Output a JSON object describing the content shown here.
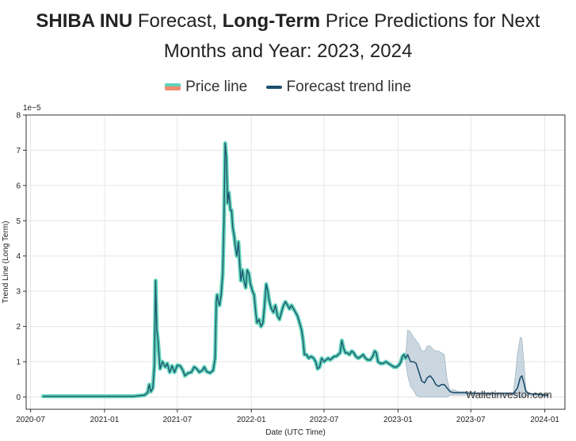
{
  "title": {
    "part1_bold": "SHIBA INU",
    "part2": " Forecast, ",
    "part3_bold": "Long-Term",
    "part4": " Price Predictions for Next",
    "line2": "Months and Year: 2023, 2024"
  },
  "legend": {
    "price_label": "Price line",
    "forecast_label": "Forecast trend line"
  },
  "colors": {
    "price_line": "#5fd3b8",
    "price_line_alt": "#f28b6e",
    "forecast_line": "#1d4f6e",
    "confidence_band": "#b9cad6",
    "grid": "#e6e6e6"
  },
  "watermark": "Walletinvestor.com",
  "chart_data": {
    "type": "line",
    "xlabel": "Date (UTC Time)",
    "ylabel": "Trend Line (Long Term)",
    "y_scale_label": "1e−5",
    "xlim": [
      "2020-06-20",
      "2024-02-20"
    ],
    "ylim": [
      -0.35,
      8
    ],
    "x_ticks": [
      "2020-07",
      "2021-01",
      "2021-07",
      "2022-01",
      "2022-07",
      "2023-01",
      "2023-07",
      "2024-01"
    ],
    "y_ticks": [
      0,
      1,
      2,
      3,
      4,
      5,
      6,
      7,
      8
    ],
    "grid": true,
    "legend_position": "top",
    "series": [
      {
        "name": "Price line",
        "points": [
          [
            "2020-08-01",
            0.02
          ],
          [
            "2020-09-15",
            0.02
          ],
          [
            "2020-11-01",
            0.02
          ],
          [
            "2020-12-15",
            0.02
          ],
          [
            "2021-01-31",
            0.02
          ],
          [
            "2021-03-15",
            0.02
          ],
          [
            "2021-04-10",
            0.05
          ],
          [
            "2021-04-18",
            0.12
          ],
          [
            "2021-04-22",
            0.35
          ],
          [
            "2021-04-26",
            0.15
          ],
          [
            "2021-05-01",
            0.25
          ],
          [
            "2021-05-05",
            0.9
          ],
          [
            "2021-05-08",
            3.3
          ],
          [
            "2021-05-11",
            1.9
          ],
          [
            "2021-05-14",
            1.6
          ],
          [
            "2021-05-19",
            0.8
          ],
          [
            "2021-05-25",
            1.0
          ],
          [
            "2021-06-01",
            0.85
          ],
          [
            "2021-06-06",
            0.95
          ],
          [
            "2021-06-12",
            0.7
          ],
          [
            "2021-06-18",
            0.88
          ],
          [
            "2021-06-24",
            0.7
          ],
          [
            "2021-07-01",
            0.9
          ],
          [
            "2021-07-08",
            0.88
          ],
          [
            "2021-07-15",
            0.75
          ],
          [
            "2021-07-20",
            0.6
          ],
          [
            "2021-07-28",
            0.68
          ],
          [
            "2021-08-05",
            0.7
          ],
          [
            "2021-08-12",
            0.85
          ],
          [
            "2021-08-18",
            0.8
          ],
          [
            "2021-08-25",
            0.7
          ],
          [
            "2021-09-01",
            0.75
          ],
          [
            "2021-09-06",
            0.85
          ],
          [
            "2021-09-12",
            0.72
          ],
          [
            "2021-09-20",
            0.68
          ],
          [
            "2021-09-28",
            0.75
          ],
          [
            "2021-10-03",
            1.1
          ],
          [
            "2021-10-06",
            2.7
          ],
          [
            "2021-10-08",
            2.9
          ],
          [
            "2021-10-11",
            2.7
          ],
          [
            "2021-10-14",
            2.6
          ],
          [
            "2021-10-18",
            2.9
          ],
          [
            "2021-10-22",
            3.5
          ],
          [
            "2021-10-25",
            5.0
          ],
          [
            "2021-10-28",
            7.2
          ],
          [
            "2021-10-31",
            6.8
          ],
          [
            "2021-11-03",
            5.5
          ],
          [
            "2021-11-06",
            5.8
          ],
          [
            "2021-11-10",
            5.3
          ],
          [
            "2021-11-13",
            5.3
          ],
          [
            "2021-11-16",
            4.8
          ],
          [
            "2021-11-19",
            4.6
          ],
          [
            "2021-11-22",
            4.3
          ],
          [
            "2021-11-26",
            4.0
          ],
          [
            "2021-11-30",
            4.4
          ],
          [
            "2021-12-03",
            3.8
          ],
          [
            "2021-12-06",
            3.3
          ],
          [
            "2021-12-10",
            3.6
          ],
          [
            "2021-12-14",
            3.3
          ],
          [
            "2021-12-18",
            3.1
          ],
          [
            "2021-12-22",
            3.6
          ],
          [
            "2021-12-26",
            3.5
          ],
          [
            "2021-12-30",
            3.2
          ],
          [
            "2022-01-04",
            3.0
          ],
          [
            "2022-01-08",
            2.9
          ],
          [
            "2022-01-12",
            2.4
          ],
          [
            "2022-01-15",
            2.1
          ],
          [
            "2022-01-20",
            2.2
          ],
          [
            "2022-01-25",
            2.0
          ],
          [
            "2022-01-30",
            2.1
          ],
          [
            "2022-02-03",
            2.6
          ],
          [
            "2022-02-07",
            3.2
          ],
          [
            "2022-02-11",
            3.0
          ],
          [
            "2022-02-15",
            2.7
          ],
          [
            "2022-02-20",
            2.5
          ],
          [
            "2022-02-25",
            2.4
          ],
          [
            "2022-03-02",
            2.6
          ],
          [
            "2022-03-07",
            2.3
          ],
          [
            "2022-03-12",
            2.2
          ],
          [
            "2022-03-17",
            2.4
          ],
          [
            "2022-03-22",
            2.6
          ],
          [
            "2022-03-27",
            2.7
          ],
          [
            "2022-04-01",
            2.6
          ],
          [
            "2022-04-06",
            2.5
          ],
          [
            "2022-04-11",
            2.6
          ],
          [
            "2022-04-16",
            2.5
          ],
          [
            "2022-04-21",
            2.4
          ],
          [
            "2022-04-26",
            2.3
          ],
          [
            "2022-05-01",
            2.1
          ],
          [
            "2022-05-06",
            1.9
          ],
          [
            "2022-05-10",
            1.6
          ],
          [
            "2022-05-13",
            1.2
          ],
          [
            "2022-05-18",
            1.2
          ],
          [
            "2022-05-24",
            1.1
          ],
          [
            "2022-05-30",
            1.15
          ],
          [
            "2022-06-05",
            1.1
          ],
          [
            "2022-06-10",
            1.0
          ],
          [
            "2022-06-15",
            0.8
          ],
          [
            "2022-06-20",
            0.85
          ],
          [
            "2022-06-25",
            1.1
          ],
          [
            "2022-07-01",
            1.0
          ],
          [
            "2022-07-06",
            1.05
          ],
          [
            "2022-07-11",
            1.1
          ],
          [
            "2022-07-16",
            1.05
          ],
          [
            "2022-07-21",
            1.1
          ],
          [
            "2022-07-26",
            1.15
          ],
          [
            "2022-07-31",
            1.15
          ],
          [
            "2022-08-05",
            1.2
          ],
          [
            "2022-08-10",
            1.25
          ],
          [
            "2022-08-14",
            1.6
          ],
          [
            "2022-08-18",
            1.4
          ],
          [
            "2022-08-23",
            1.25
          ],
          [
            "2022-08-28",
            1.25
          ],
          [
            "2022-09-02",
            1.2
          ],
          [
            "2022-09-08",
            1.3
          ],
          [
            "2022-09-13",
            1.25
          ],
          [
            "2022-09-18",
            1.15
          ],
          [
            "2022-09-24",
            1.1
          ],
          [
            "2022-10-01",
            1.15
          ],
          [
            "2022-10-06",
            1.2
          ],
          [
            "2022-10-12",
            1.1
          ],
          [
            "2022-10-18",
            1.05
          ],
          [
            "2022-10-24",
            1.05
          ],
          [
            "2022-10-30",
            1.15
          ],
          [
            "2022-11-04",
            1.3
          ],
          [
            "2022-11-08",
            1.25
          ],
          [
            "2022-11-12",
            1.0
          ],
          [
            "2022-11-18",
            0.95
          ],
          [
            "2022-11-25",
            0.95
          ],
          [
            "2022-12-02",
            1.0
          ],
          [
            "2022-12-08",
            0.95
          ],
          [
            "2022-12-15",
            0.9
          ],
          [
            "2022-12-22",
            0.85
          ],
          [
            "2022-12-28",
            0.85
          ],
          [
            "2023-01-03",
            0.9
          ],
          [
            "2023-01-08",
            1.0
          ],
          [
            "2023-01-12",
            1.15
          ],
          [
            "2023-01-16",
            1.2
          ],
          [
            "2023-01-20",
            1.1
          ]
        ]
      },
      {
        "name": "Forecast trend line",
        "points": [
          [
            "2023-01-20",
            1.1
          ],
          [
            "2023-01-25",
            1.2
          ],
          [
            "2023-02-01",
            1.0
          ],
          [
            "2023-02-08",
            1.0
          ],
          [
            "2023-02-15",
            0.95
          ],
          [
            "2023-02-22",
            0.7
          ],
          [
            "2023-03-01",
            0.45
          ],
          [
            "2023-03-08",
            0.4
          ],
          [
            "2023-03-15",
            0.55
          ],
          [
            "2023-03-22",
            0.6
          ],
          [
            "2023-03-29",
            0.5
          ],
          [
            "2023-04-05",
            0.35
          ],
          [
            "2023-04-12",
            0.3
          ],
          [
            "2023-04-19",
            0.35
          ],
          [
            "2023-04-26",
            0.35
          ],
          [
            "2023-05-03",
            0.25
          ],
          [
            "2023-05-10",
            0.15
          ],
          [
            "2023-05-20",
            0.12
          ],
          [
            "2023-06-01",
            0.12
          ],
          [
            "2023-06-15",
            0.12
          ],
          [
            "2023-07-01",
            0.1
          ],
          [
            "2023-07-15",
            0.1
          ],
          [
            "2023-08-01",
            0.1
          ],
          [
            "2023-08-15",
            0.1
          ],
          [
            "2023-09-01",
            0.1
          ],
          [
            "2023-09-15",
            0.1
          ],
          [
            "2023-10-01",
            0.1
          ],
          [
            "2023-10-15",
            0.1
          ],
          [
            "2023-10-25",
            0.25
          ],
          [
            "2023-11-01",
            0.55
          ],
          [
            "2023-11-05",
            0.6
          ],
          [
            "2023-11-10",
            0.4
          ],
          [
            "2023-11-15",
            0.15
          ],
          [
            "2023-11-22",
            0.1
          ],
          [
            "2023-12-01",
            0.08
          ],
          [
            "2023-12-15",
            0.08
          ],
          [
            "2024-01-01",
            0.05
          ],
          [
            "2024-01-10",
            0.05
          ]
        ]
      }
    ],
    "confidence_band": {
      "upper": [
        [
          "2023-01-20",
          1.2
        ],
        [
          "2023-01-25",
          1.9
        ],
        [
          "2023-02-01",
          1.85
        ],
        [
          "2023-02-08",
          1.7
        ],
        [
          "2023-02-15",
          1.6
        ],
        [
          "2023-02-22",
          1.5
        ],
        [
          "2023-03-01",
          1.3
        ],
        [
          "2023-03-08",
          1.3
        ],
        [
          "2023-03-15",
          1.45
        ],
        [
          "2023-03-22",
          1.45
        ],
        [
          "2023-03-29",
          1.35
        ],
        [
          "2023-04-05",
          1.3
        ],
        [
          "2023-04-12",
          1.3
        ],
        [
          "2023-04-19",
          1.25
        ],
        [
          "2023-04-26",
          1.2
        ],
        [
          "2023-05-03",
          0.5
        ],
        [
          "2023-05-10",
          0.2
        ],
        [
          "2023-05-20",
          0.2
        ],
        [
          "2023-06-01",
          0.15
        ],
        [
          "2023-06-15",
          0.15
        ],
        [
          "2023-07-01",
          0.15
        ],
        [
          "2023-07-15",
          0.12
        ],
        [
          "2023-08-01",
          0.12
        ],
        [
          "2023-08-15",
          0.12
        ],
        [
          "2023-09-01",
          0.12
        ],
        [
          "2023-09-15",
          0.12
        ],
        [
          "2023-10-01",
          0.12
        ],
        [
          "2023-10-15",
          0.12
        ],
        [
          "2023-10-25",
          1.2
        ],
        [
          "2023-11-01",
          1.7
        ],
        [
          "2023-11-05",
          1.65
        ],
        [
          "2023-11-10",
          1.0
        ],
        [
          "2023-11-15",
          0.2
        ],
        [
          "2023-11-22",
          0.12
        ],
        [
          "2023-12-01",
          0.1
        ],
        [
          "2023-12-15",
          0.1
        ],
        [
          "2024-01-01",
          0.08
        ],
        [
          "2024-01-10",
          0.08
        ]
      ],
      "lower": [
        [
          "2023-01-20",
          1.0
        ],
        [
          "2023-01-25",
          0.6
        ],
        [
          "2023-02-01",
          0.3
        ],
        [
          "2023-02-08",
          0.2
        ],
        [
          "2023-02-15",
          0.05
        ],
        [
          "2023-02-22",
          0.0
        ],
        [
          "2023-03-01",
          0.0
        ],
        [
          "2023-03-08",
          0.0
        ],
        [
          "2023-03-15",
          0.0
        ],
        [
          "2023-03-22",
          0.0
        ],
        [
          "2023-03-29",
          0.0
        ],
        [
          "2023-04-05",
          0.0
        ],
        [
          "2023-04-12",
          0.0
        ],
        [
          "2023-04-19",
          0.0
        ],
        [
          "2023-04-26",
          0.0
        ],
        [
          "2023-05-03",
          0.0
        ],
        [
          "2023-05-10",
          0.05
        ],
        [
          "2023-05-20",
          0.05
        ],
        [
          "2023-06-01",
          0.05
        ],
        [
          "2023-06-15",
          0.05
        ],
        [
          "2023-07-01",
          0.05
        ],
        [
          "2023-07-15",
          0.05
        ],
        [
          "2023-08-01",
          0.05
        ],
        [
          "2023-08-15",
          0.05
        ],
        [
          "2023-09-01",
          0.05
        ],
        [
          "2023-09-15",
          0.05
        ],
        [
          "2023-10-01",
          0.05
        ],
        [
          "2023-10-15",
          0.05
        ],
        [
          "2023-10-25",
          0.05
        ],
        [
          "2023-11-01",
          0.0
        ],
        [
          "2023-11-05",
          0.0
        ],
        [
          "2023-11-10",
          0.0
        ],
        [
          "2023-11-15",
          0.05
        ],
        [
          "2023-11-22",
          0.05
        ],
        [
          "2023-12-01",
          0.03
        ],
        [
          "2023-12-15",
          0.03
        ],
        [
          "2024-01-01",
          0.02
        ],
        [
          "2024-01-10",
          0.02
        ]
      ]
    }
  }
}
